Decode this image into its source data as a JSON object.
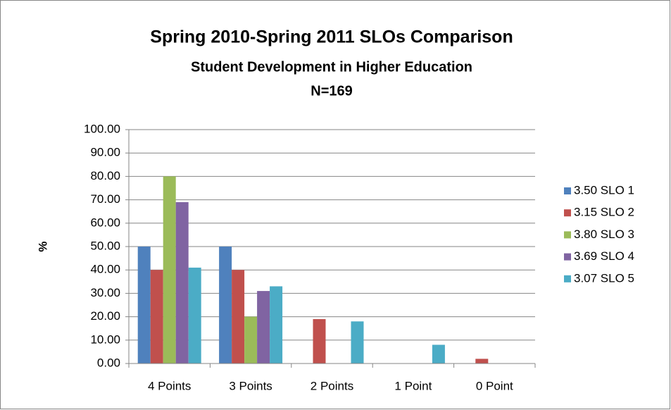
{
  "chart_data": {
    "type": "bar",
    "title": "Spring 2010-Spring 2011 SLOs Comparison",
    "subtitle": "Student Development in Higher Education",
    "note": "N=169",
    "ylabel": "%",
    "categories": [
      "4 Points",
      "3 Points",
      "2 Points",
      "1 Point",
      "0 Point"
    ],
    "series": [
      {
        "name": "3.50 SLO 1",
        "color": "#4f81bd",
        "values": [
          50,
          50,
          0,
          0,
          0
        ]
      },
      {
        "name": "3.15 SLO 2",
        "color": "#c0504d",
        "values": [
          40,
          40,
          19,
          0,
          2
        ]
      },
      {
        "name": "3.80 SLO 3",
        "color": "#9bbb59",
        "values": [
          80,
          20,
          0,
          0,
          0
        ]
      },
      {
        "name": "3.69 SLO 4",
        "color": "#8064a2",
        "values": [
          69,
          31,
          0,
          0,
          0
        ]
      },
      {
        "name": "3.07 SLO 5",
        "color": "#4bacc6",
        "values": [
          41,
          33,
          18,
          8,
          0
        ]
      }
    ],
    "ylim": [
      0,
      100
    ],
    "yticks": [
      {
        "value": 0,
        "label": "0.00"
      },
      {
        "value": 10,
        "label": "10.00"
      },
      {
        "value": 20,
        "label": "20.00"
      },
      {
        "value": 30,
        "label": "30.00"
      },
      {
        "value": 40,
        "label": "40.00"
      },
      {
        "value": 50,
        "label": "50.00"
      },
      {
        "value": 60,
        "label": "60.00"
      },
      {
        "value": 70,
        "label": "70.00"
      },
      {
        "value": 80,
        "label": "80.00"
      },
      {
        "value": 90,
        "label": "90.00"
      },
      {
        "value": 100,
        "label": "100.00"
      }
    ],
    "grid": true,
    "legend": "right"
  }
}
